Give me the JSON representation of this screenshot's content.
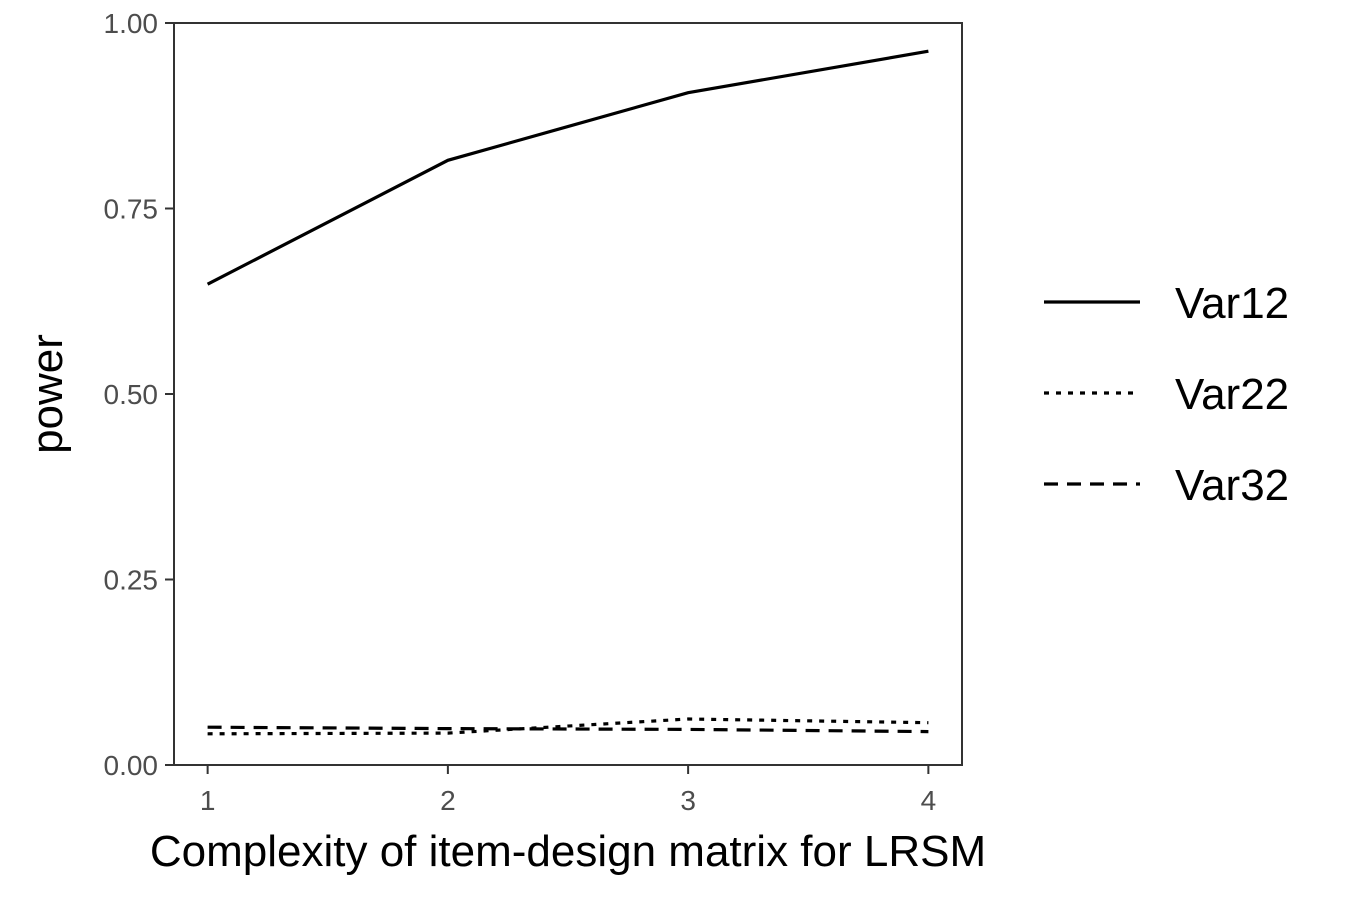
{
  "chart_data": {
    "type": "line",
    "title": "",
    "xlabel": "Complexity of item-design matrix for LRSM",
    "ylabel": "power",
    "x": [
      1,
      2,
      3,
      4
    ],
    "xlim": [
      0.86,
      4.14
    ],
    "ylim": [
      0,
      1
    ],
    "x_ticks": [
      "1",
      "2",
      "3",
      "4"
    ],
    "y_ticks": [
      "0.00",
      "0.25",
      "0.50",
      "0.75",
      "1.00"
    ],
    "grid": false,
    "legend_position": "right",
    "series": [
      {
        "name": "Var12",
        "dash": "solid",
        "color": "#000000",
        "values": [
          0.648,
          0.815,
          0.906,
          0.962
        ]
      },
      {
        "name": "Var22",
        "dash": "dotted",
        "color": "#000000",
        "values": [
          0.042,
          0.043,
          0.062,
          0.057
        ]
      },
      {
        "name": "Var32",
        "dash": "dashed",
        "color": "#000000",
        "values": [
          0.051,
          0.049,
          0.048,
          0.045
        ]
      }
    ]
  }
}
